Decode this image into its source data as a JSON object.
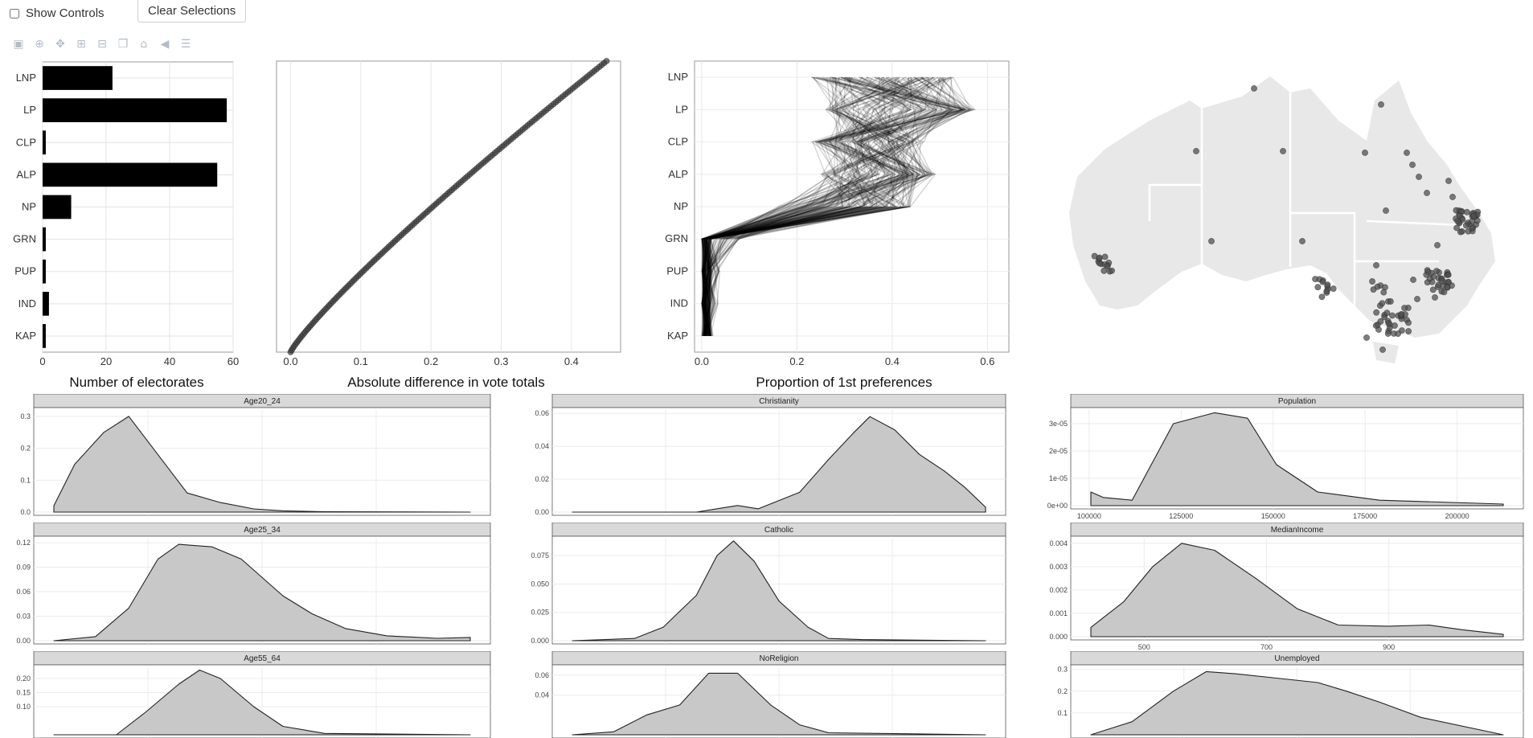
{
  "controls": {
    "show_controls_label": "Show Controls",
    "clear_selections_label": "Clear Selections"
  },
  "modebar": {
    "icons": [
      "camera-icon",
      "zoom-icon",
      "pan-icon",
      "zoom-in-icon",
      "zoom-out-icon",
      "autoscale-icon",
      "reset-axes-icon",
      "spike-lines-icon",
      "compare-data-icon"
    ]
  },
  "chart_data": [
    {
      "type": "bar",
      "orientation": "horizontal",
      "categories": [
        "LNP",
        "LP",
        "CLP",
        "ALP",
        "NP",
        "GRN",
        "PUP",
        "IND",
        "KAP"
      ],
      "values": [
        22,
        58,
        1,
        55,
        9,
        1,
        1,
        2,
        1
      ],
      "xlabel": "Number of electorates",
      "xlim": [
        0,
        60
      ],
      "xticks": [
        0,
        20,
        40,
        60
      ],
      "grid": true
    },
    {
      "type": "scatter",
      "xlabel": "Absolute difference in vote totals",
      "xlim": [
        -0.02,
        0.47
      ],
      "xticks": [
        0.0,
        0.1,
        0.2,
        0.3,
        0.4
      ],
      "x_range": [
        0.0,
        0.45
      ],
      "points": 150,
      "grid": true
    },
    {
      "type": "line",
      "subtype": "parallel-coordinates",
      "categories": [
        "LNP",
        "LP",
        "CLP",
        "ALP",
        "NP",
        "GRN",
        "PUP",
        "IND",
        "KAP"
      ],
      "xlabel": "Proportion of 1st preferences",
      "xlim": [
        -0.015,
        0.645
      ],
      "xticks": [
        0.0,
        0.2,
        0.4,
        0.6
      ],
      "lines": 150,
      "grid": true
    },
    {
      "type": "map",
      "region": "Australia",
      "points": "electorate centroids",
      "grid": false
    },
    {
      "type": "area",
      "subtype": "density",
      "facets": [
        {
          "title": "Age20_24",
          "xlim": [
            2,
            20
          ],
          "ylim": [
            0,
            0.32
          ],
          "yticks": [
            0.0,
            0.1,
            0.2,
            0.3
          ],
          "ytick_labels": [
            "0.0",
            "0.1",
            "0.2",
            "0.3"
          ],
          "xticks": []
        },
        {
          "title": "Age25_34",
          "xlim": [
            5,
            30
          ],
          "ylim": [
            0,
            0.125
          ],
          "yticks": [
            0,
            0.03,
            0.06,
            0.09,
            0.12
          ],
          "ytick_labels": [
            "0.00",
            "0.03",
            "0.06",
            "0.09",
            "0.12"
          ],
          "xticks": []
        },
        {
          "title": "Age55_64",
          "xlim": [
            5,
            25
          ],
          "ylim": [
            0,
            0.24
          ],
          "yticks": [
            0.1,
            0.15,
            0.2
          ],
          "ytick_labels": [
            "0.10",
            "0.15",
            "0.20"
          ],
          "xticks": []
        },
        {
          "title": "Christianity",
          "xlim": [
            20,
            80
          ],
          "ylim": [
            0,
            0.062
          ],
          "yticks": [
            0,
            0.02,
            0.04,
            0.06
          ],
          "ytick_labels": [
            "0.00",
            "0.02",
            "0.04",
            "0.06"
          ],
          "xticks": []
        },
        {
          "title": "Catholic",
          "xlim": [
            5,
            45
          ],
          "ylim": [
            0,
            0.09
          ],
          "yticks": [
            0,
            0.025,
            0.05,
            0.075
          ],
          "ytick_labels": [
            "0.000",
            "0.025",
            "0.050",
            "0.075"
          ],
          "xticks": []
        },
        {
          "title": "NoReligion",
          "xlim": [
            5,
            45
          ],
          "ylim": [
            0,
            0.068
          ],
          "yticks": [
            0.04,
            0.06
          ],
          "ytick_labels": [
            "0.04",
            "0.06"
          ],
          "xticks": []
        },
        {
          "title": "Population",
          "xlim": [
            95000,
            218000
          ],
          "ylim": [
            0,
            3.5e-05
          ],
          "yticks": [
            0,
            1e-05,
            2e-05,
            3e-05
          ],
          "ytick_labels": [
            "0e+00",
            "1e-05",
            "2e-05",
            "3e-05"
          ],
          "xticks": [
            100000,
            125000,
            150000,
            175000,
            200000
          ],
          "xtick_labels": [
            "100000",
            "125000",
            "150000",
            "175000",
            "200000"
          ]
        },
        {
          "title": "MedianIncome",
          "xlim": [
            380,
            1120
          ],
          "ylim": [
            0,
            0.0042
          ],
          "yticks": [
            0,
            0.001,
            0.002,
            0.003,
            0.004
          ],
          "ytick_labels": [
            "0.000",
            "0.001",
            "0.002",
            "0.003",
            "0.004"
          ],
          "xticks": [
            500,
            700,
            900
          ],
          "xtick_labels": [
            "500",
            "700",
            "900"
          ]
        },
        {
          "title": "Unemployed",
          "xlim": [
            0,
            30
          ],
          "ylim": [
            0,
            0.31
          ],
          "yticks": [
            0.1,
            0.2,
            0.3
          ],
          "ytick_labels": [
            "0.1",
            "0.2",
            "0.3"
          ],
          "xticks": []
        }
      ]
    }
  ]
}
